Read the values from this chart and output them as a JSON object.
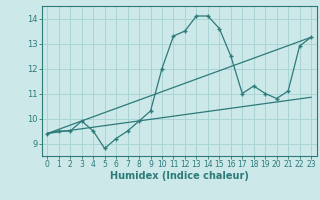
{
  "xlabel": "Humidex (Indice chaleur)",
  "bg_color": "#cce8e8",
  "line_color": "#2d7a7a",
  "xlim": [
    -0.5,
    23.5
  ],
  "ylim": [
    8.5,
    14.5
  ],
  "xticks": [
    0,
    1,
    2,
    3,
    4,
    5,
    6,
    7,
    8,
    9,
    10,
    11,
    12,
    13,
    14,
    15,
    16,
    17,
    18,
    19,
    20,
    21,
    22,
    23
  ],
  "yticks": [
    9,
    10,
    11,
    12,
    13,
    14
  ],
  "grid_color": "#aad4d4",
  "series0_x": [
    0,
    1,
    2,
    3,
    4,
    5,
    6,
    7,
    8,
    9,
    10,
    11,
    12,
    13,
    14,
    15,
    16,
    17,
    18,
    19,
    20,
    21,
    22,
    23
  ],
  "series0_y": [
    9.4,
    9.5,
    9.5,
    9.9,
    9.5,
    8.8,
    9.2,
    9.5,
    9.9,
    10.3,
    12.0,
    13.3,
    13.5,
    14.1,
    14.1,
    13.6,
    12.5,
    11.0,
    11.3,
    11.0,
    10.8,
    11.1,
    12.9,
    13.25
  ],
  "series1_x": [
    0,
    23
  ],
  "series1_y": [
    9.4,
    13.25
  ],
  "series2_x": [
    0,
    23
  ],
  "series2_y": [
    9.4,
    10.85
  ],
  "tick_fontsize": 5.5,
  "xlabel_fontsize": 7
}
